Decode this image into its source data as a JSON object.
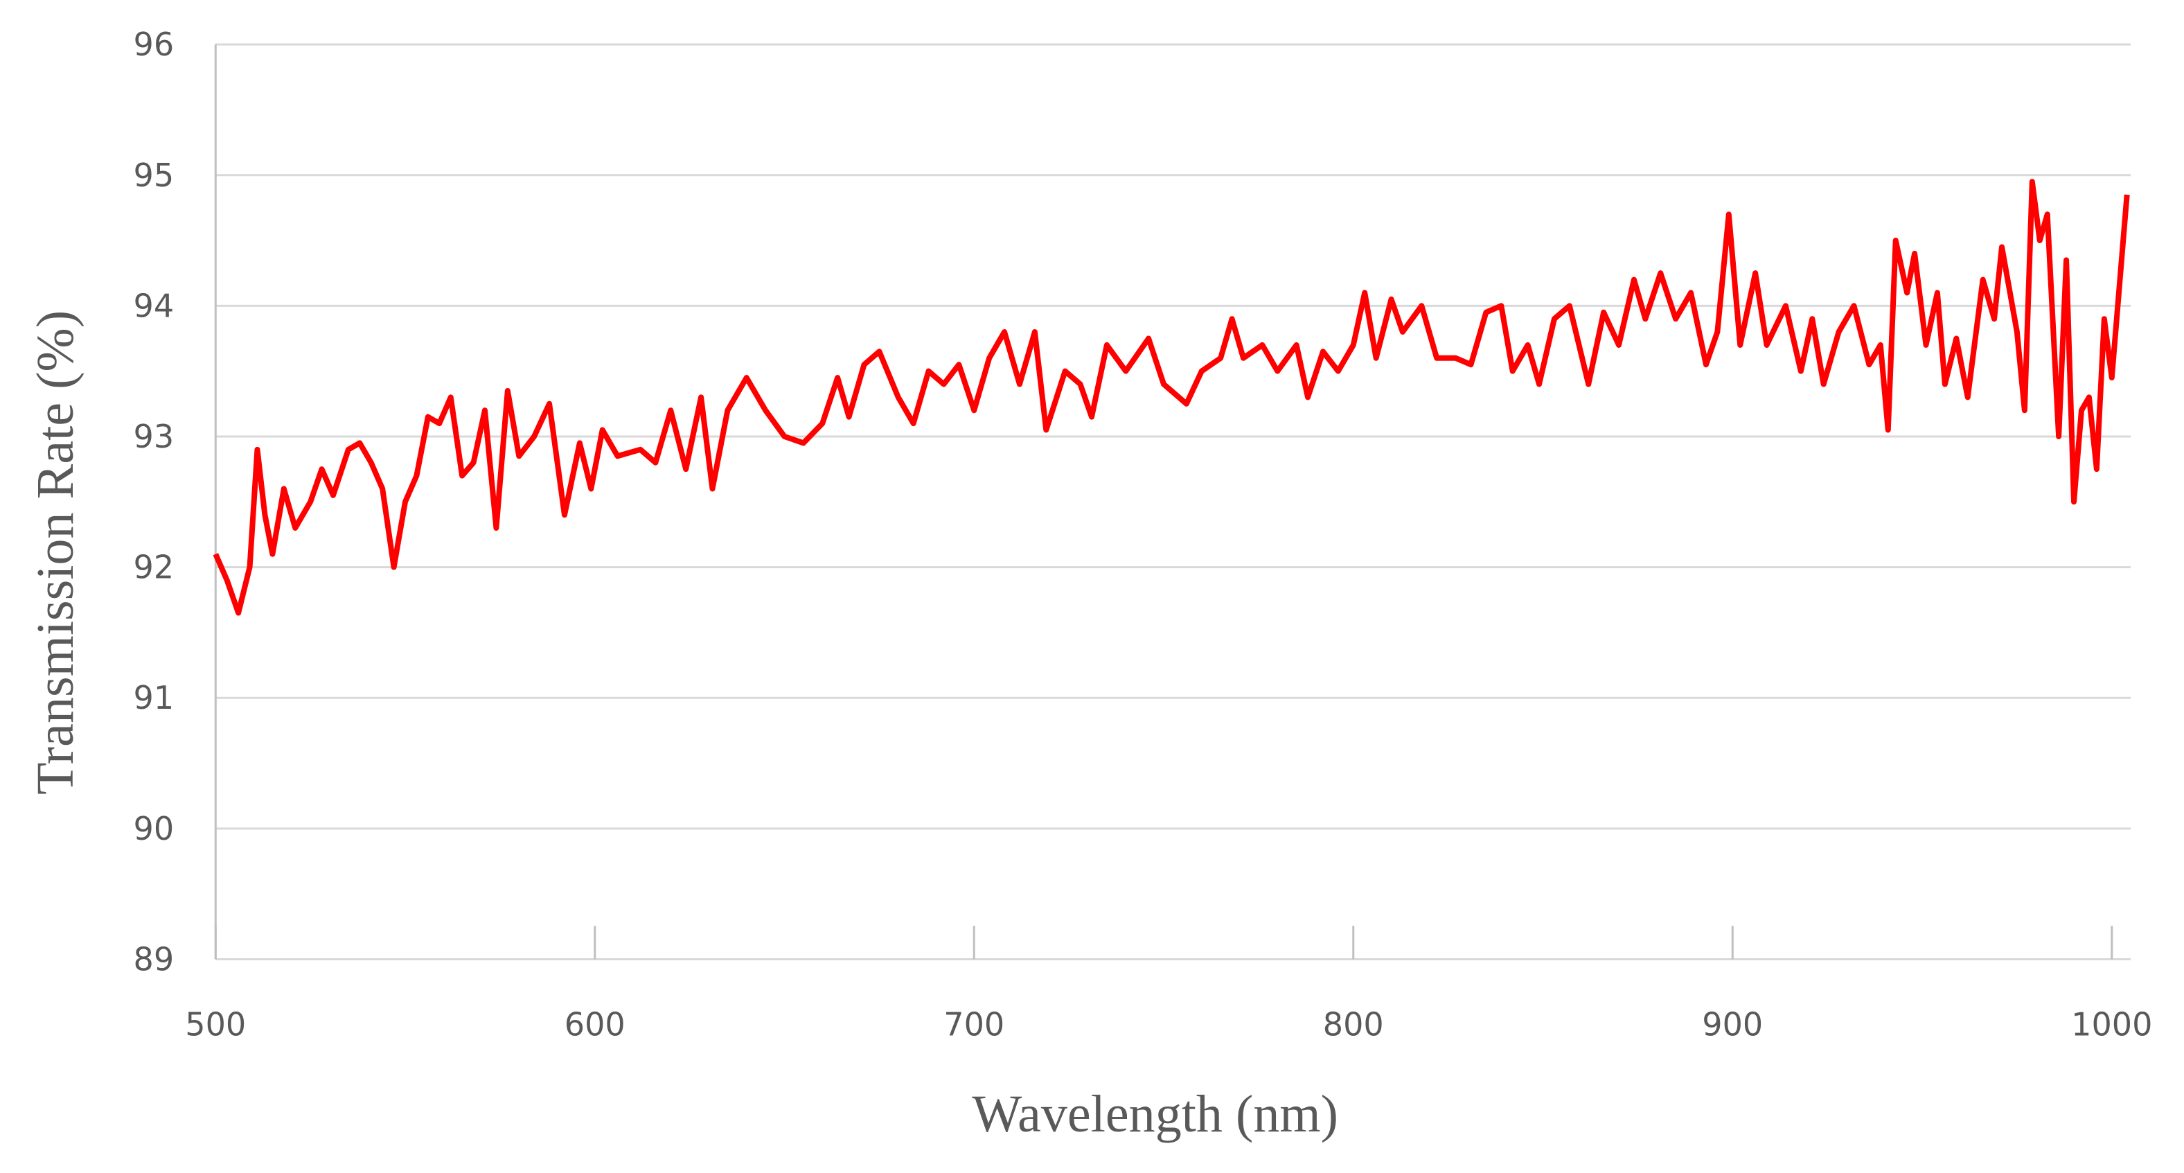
{
  "chart_data": {
    "type": "line",
    "x_label": "Wavelength (nm)",
    "y_label": "Transmission Rate (%)",
    "xlim": [
      500,
      1005
    ],
    "ylim": [
      89,
      96
    ],
    "xticks": [
      500,
      600,
      700,
      800,
      900,
      1000
    ],
    "yticks": [
      89,
      90,
      91,
      92,
      93,
      94,
      95,
      96
    ],
    "grid": true,
    "series": [
      {
        "color": "#ff0000",
        "x": [
          500,
          503,
          506,
          509,
          511,
          513,
          515,
          518,
          521,
          525,
          528,
          531,
          535,
          538,
          541,
          544,
          547,
          550,
          553,
          556,
          559,
          562,
          565,
          568,
          571,
          574,
          577,
          580,
          584,
          588,
          592,
          596,
          599,
          602,
          606,
          612,
          616,
          620,
          624,
          628,
          631,
          635,
          640,
          645,
          650,
          655,
          660,
          664,
          667,
          671,
          675,
          680,
          684,
          688,
          692,
          696,
          700,
          704,
          708,
          712,
          716,
          719,
          724,
          728,
          731,
          735,
          740,
          746,
          750,
          756,
          760,
          765,
          768,
          771,
          776,
          780,
          785,
          788,
          792,
          796,
          800,
          803,
          806,
          810,
          813,
          818,
          822,
          827,
          831,
          835,
          839,
          842,
          846,
          849,
          853,
          857,
          862,
          866,
          870,
          874,
          877,
          881,
          885,
          889,
          893,
          896,
          899,
          902,
          906,
          909,
          914,
          918,
          921,
          924,
          928,
          932,
          936,
          939,
          941,
          943,
          946,
          948,
          951,
          954,
          956,
          959,
          962,
          966,
          969,
          971,
          975,
          977,
          979,
          981,
          983,
          986,
          988,
          990,
          992,
          994,
          996,
          998,
          1000,
          1003,
          1004
        ],
        "values": [
          92.1,
          91.9,
          91.65,
          92.0,
          92.9,
          92.4,
          92.1,
          92.6,
          92.3,
          92.5,
          92.75,
          92.55,
          92.9,
          92.95,
          92.8,
          92.6,
          92.0,
          92.5,
          92.7,
          93.15,
          93.1,
          93.3,
          92.7,
          92.8,
          93.2,
          92.3,
          93.35,
          92.85,
          93.0,
          93.25,
          92.4,
          92.95,
          92.6,
          93.05,
          92.85,
          92.9,
          92.8,
          93.2,
          92.75,
          93.3,
          92.6,
          93.2,
          93.45,
          93.2,
          93.0,
          92.95,
          93.1,
          93.45,
          93.15,
          93.55,
          93.65,
          93.3,
          93.1,
          93.5,
          93.4,
          93.55,
          93.2,
          93.6,
          93.8,
          93.4,
          93.8,
          93.05,
          93.5,
          93.4,
          93.15,
          93.7,
          93.5,
          93.75,
          93.4,
          93.25,
          93.5,
          93.6,
          93.9,
          93.6,
          93.7,
          93.5,
          93.7,
          93.3,
          93.65,
          93.5,
          93.7,
          94.1,
          93.6,
          94.05,
          93.8,
          94.0,
          93.6,
          93.6,
          93.55,
          93.95,
          94.0,
          93.5,
          93.7,
          93.4,
          93.9,
          94.0,
          93.4,
          93.95,
          93.7,
          94.2,
          93.9,
          94.25,
          93.9,
          94.1,
          93.55,
          93.8,
          94.7,
          93.7,
          94.25,
          93.7,
          94.0,
          93.5,
          93.9,
          93.4,
          93.8,
          94.0,
          93.55,
          93.7,
          93.05,
          94.5,
          94.1,
          94.4,
          93.7,
          94.1,
          93.4,
          93.75,
          93.3,
          94.2,
          93.9,
          94.45,
          93.8,
          93.2,
          94.95,
          94.5,
          94.7,
          93.0,
          94.35,
          92.5,
          93.2,
          93.3,
          92.75,
          93.9,
          93.45,
          94.5,
          94.85
        ]
      }
    ]
  }
}
